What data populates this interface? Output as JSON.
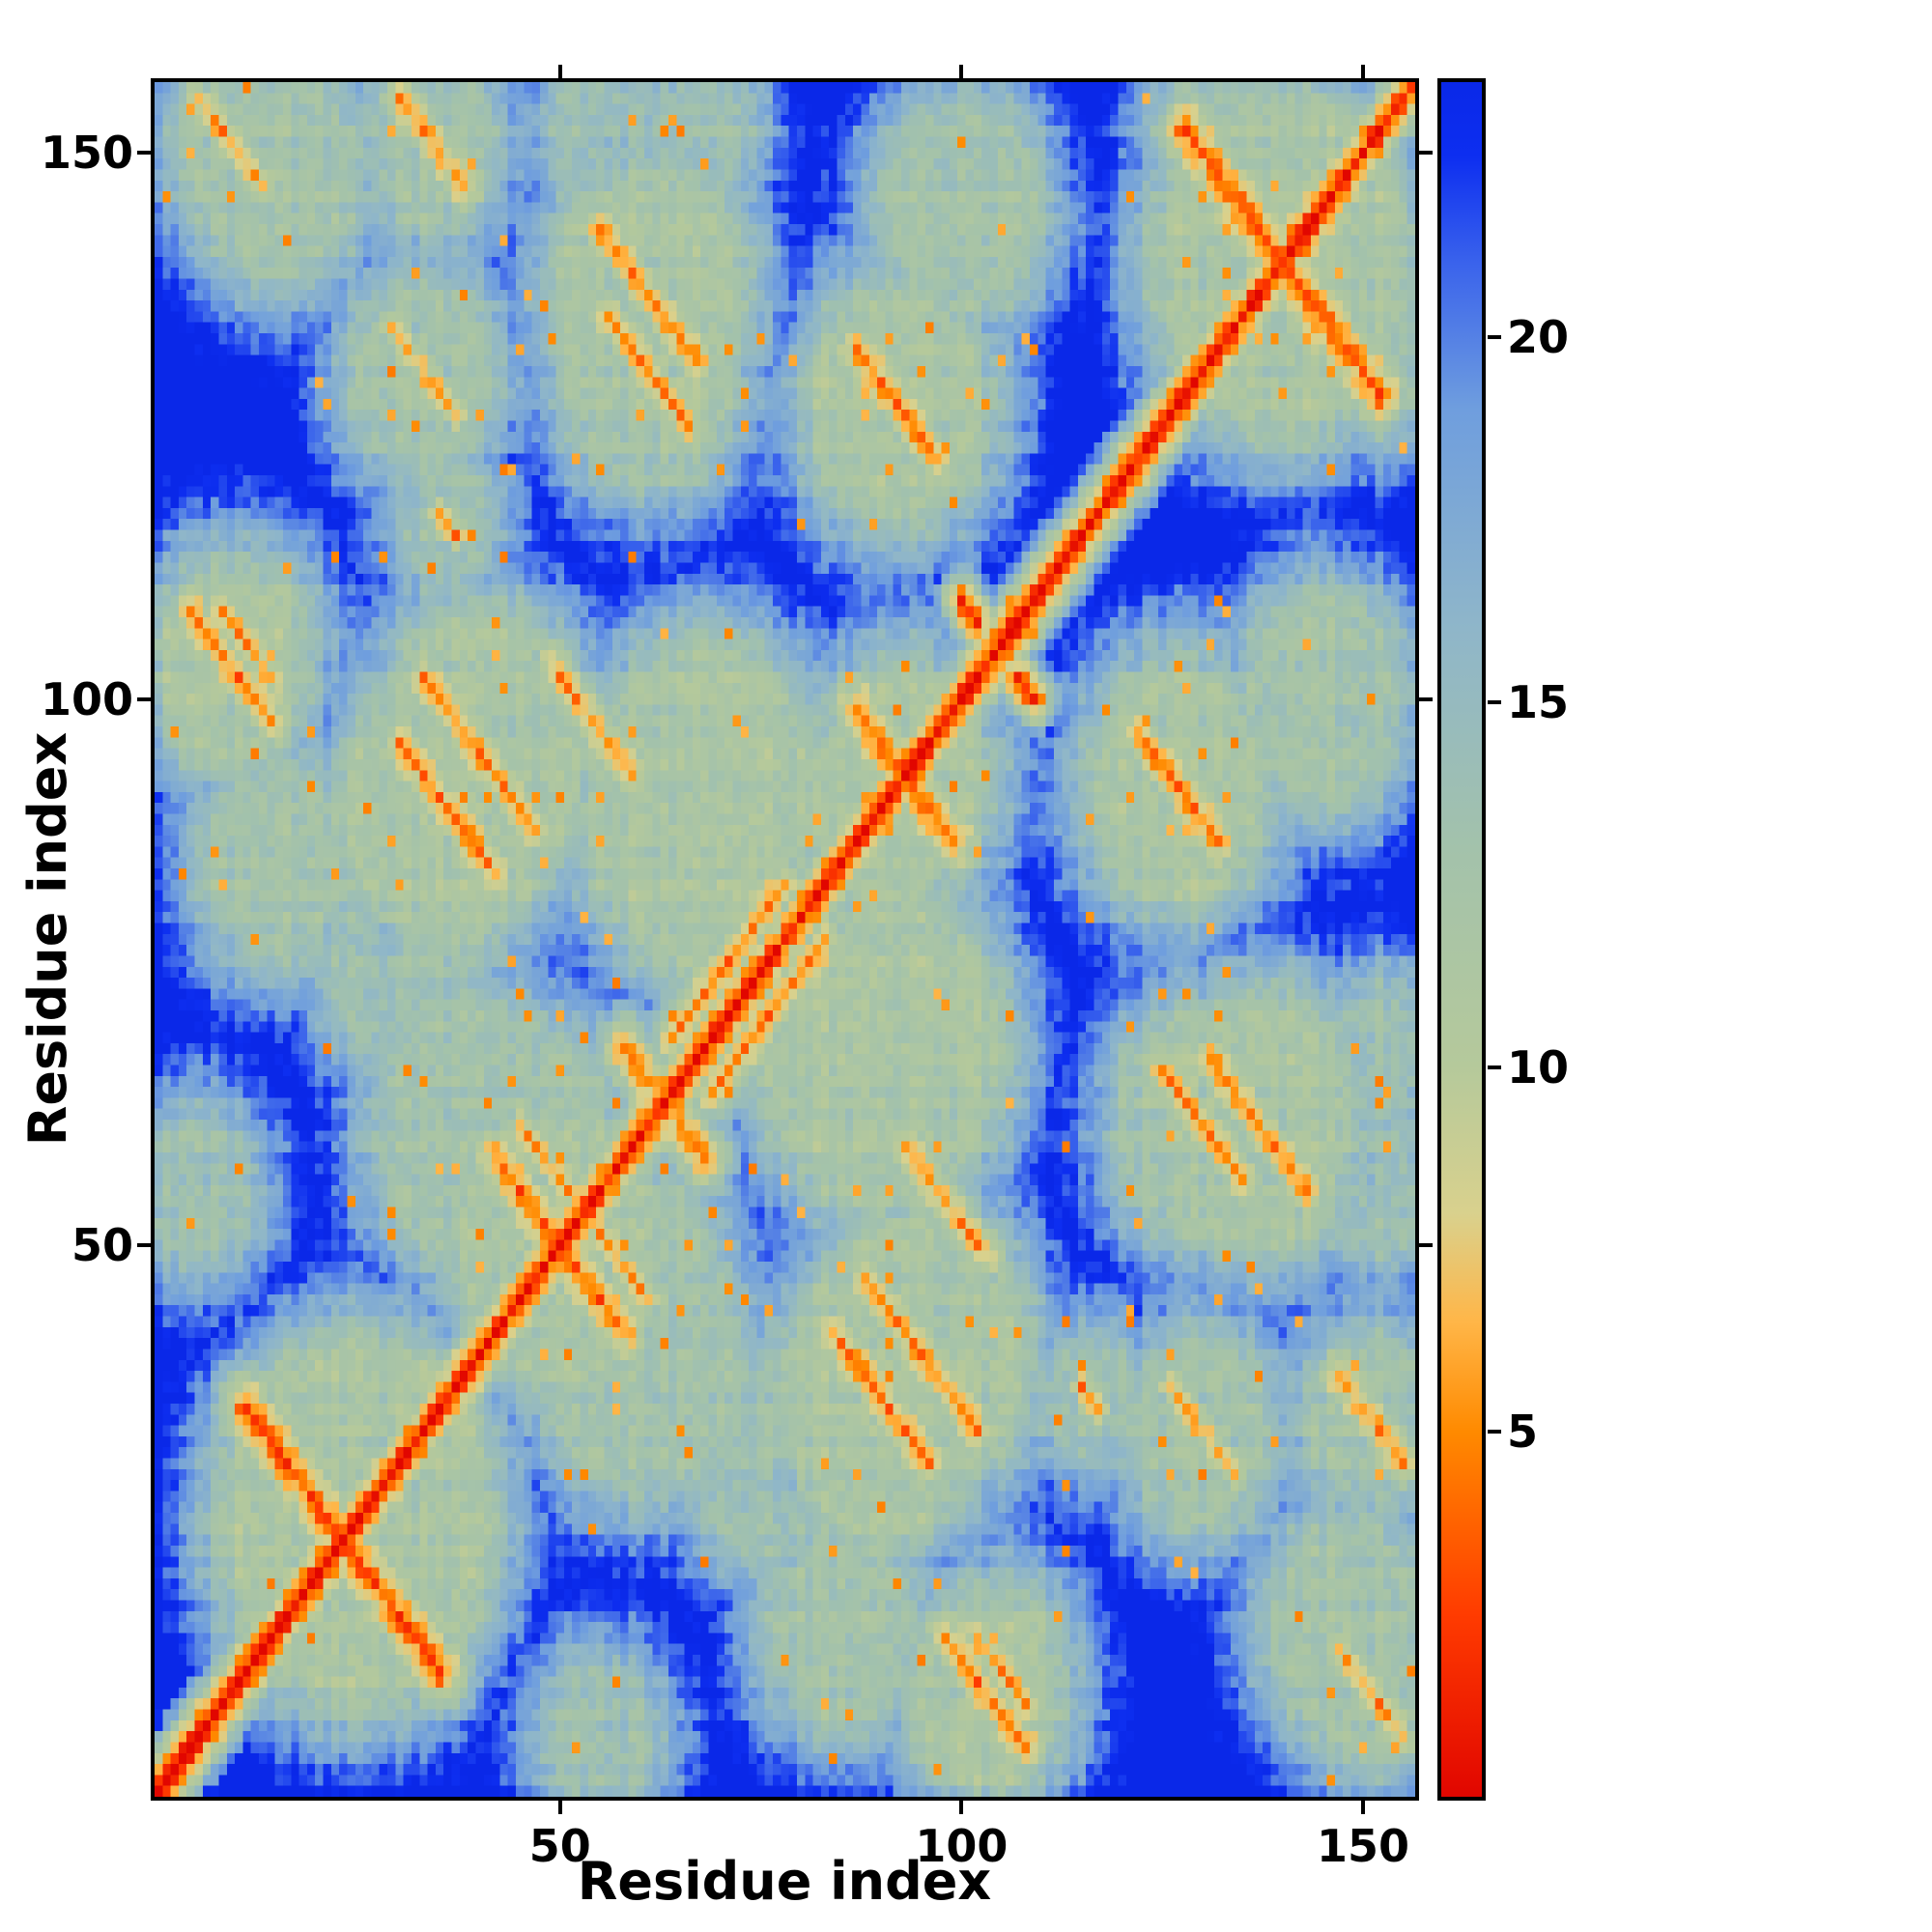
{
  "figure": {
    "background": "#ffffff",
    "frame_color": "#000000"
  },
  "axes": {
    "x_label": "Residue index",
    "y_label": "Residue index",
    "x_ticks": [
      50,
      100,
      150
    ],
    "y_ticks": [
      50,
      100,
      150
    ],
    "range": [
      0,
      157
    ]
  },
  "colorbar": {
    "ticks": [
      5,
      10,
      15,
      20
    ],
    "vmin": 0,
    "vmax": 23.5
  },
  "chart_data": {
    "type": "heatmap",
    "title": "",
    "xlabel": "Residue index",
    "ylabel": "Residue index",
    "n": 157,
    "symmetric": true,
    "value_kind": "inter-residue distance map, red = near (0), blue = far (>22)",
    "diagonal_value": 0,
    "chain_slope": 3.4,
    "background_value": 23.5,
    "blob_spread": 1.2,
    "colormap_stops": [
      [
        0,
        "#e10600"
      ],
      [
        2.5,
        "#ff3b00"
      ],
      [
        5,
        "#ff8a00"
      ],
      [
        6.5,
        "#ffb648"
      ],
      [
        8,
        "#d9d18d"
      ],
      [
        10,
        "#b5c99b"
      ],
      [
        13,
        "#a3c2ab"
      ],
      [
        16,
        "#8fb6c9"
      ],
      [
        19,
        "#6f9ede"
      ],
      [
        21,
        "#3a63ec"
      ],
      [
        22.5,
        "#0d2ef0"
      ],
      [
        23.5,
        "#0a28e8"
      ]
    ],
    "contacts": [
      {
        "type": "anti",
        "x": 23,
        "y": 23,
        "len": 12,
        "core": 3,
        "spread": 3
      },
      {
        "type": "anti",
        "x": 50,
        "y": 50,
        "len": 8,
        "core": 4,
        "spread": 3
      },
      {
        "type": "anti",
        "x": 63,
        "y": 63,
        "len": 5,
        "core": 4.5,
        "spread": 3
      },
      {
        "type": "anti",
        "x": 93,
        "y": 93,
        "len": 6,
        "core": 4,
        "spread": 3
      },
      {
        "type": "anti",
        "x": 140,
        "y": 140,
        "len": 12,
        "core": 3,
        "spread": 3
      },
      {
        "type": "par",
        "x": 71,
        "y": 76,
        "len": 7,
        "core": 5,
        "spread": 3.5
      },
      {
        "type": "anti",
        "x": 40,
        "y": 95,
        "len": 7,
        "core": 5,
        "spread": 3.5
      },
      {
        "type": "anti",
        "x": 54,
        "y": 98,
        "len": 5,
        "core": 5.5,
        "spread": 3.5
      },
      {
        "type": "anti",
        "x": 61,
        "y": 137,
        "len": 6,
        "core": 4.5,
        "spread": 3.5
      },
      {
        "type": "anti",
        "x": 92,
        "y": 127,
        "len": 5,
        "core": 4.5,
        "spread": 3.5
      },
      {
        "type": "anti",
        "x": 9,
        "y": 103,
        "len": 5,
        "core": 5,
        "spread": 3.5
      },
      {
        "type": "anti",
        "x": 90,
        "y": 36,
        "len": 6,
        "core": 4.5,
        "spread": 3.5
      },
      {
        "type": "anti",
        "x": 130,
        "y": 61,
        "len": 5,
        "core": 5,
        "spread": 3.5
      },
      {
        "type": "anti",
        "x": 151,
        "y": 34,
        "len": 4,
        "core": 5,
        "spread": 3.5
      },
      {
        "type": "anti",
        "x": 116,
        "y": 36,
        "len": 1,
        "core": 5,
        "spread": 5
      },
      {
        "type": "anti",
        "x": 48,
        "y": 58,
        "len": 3,
        "core": 5.5,
        "spread": 4
      },
      {
        "type": "anti",
        "x": 101,
        "y": 108,
        "len": 1,
        "core": 2,
        "spread": 5
      },
      {
        "type": "anti",
        "x": 33,
        "y": 130,
        "len": 4,
        "core": 6,
        "spread": 4
      },
      {
        "type": "anti",
        "x": 151,
        "y": 9,
        "len": 4,
        "core": 6,
        "spread": 4
      },
      {
        "type": "anti",
        "x": 105,
        "y": 11,
        "len": 3,
        "core": 5.5,
        "spread": 4
      }
    ],
    "blobs": [
      {
        "x": 25,
        "y": 25,
        "r": 16,
        "core": 12
      },
      {
        "x": 50,
        "y": 50,
        "r": 12,
        "core": 12
      },
      {
        "x": 93,
        "y": 93,
        "r": 9,
        "core": 12
      },
      {
        "x": 140,
        "y": 140,
        "r": 15,
        "core": 12
      },
      {
        "x": 40,
        "y": 95,
        "r": 12,
        "core": 12
      },
      {
        "x": 60,
        "y": 40,
        "r": 12,
        "core": 13
      },
      {
        "x": 68,
        "y": 90,
        "r": 14,
        "core": 12
      },
      {
        "x": 88,
        "y": 70,
        "r": 12,
        "core": 13
      },
      {
        "x": 61,
        "y": 137,
        "r": 11,
        "core": 12
      },
      {
        "x": 92,
        "y": 127,
        "r": 10,
        "core": 12
      },
      {
        "x": 9,
        "y": 103,
        "r": 8,
        "core": 12
      },
      {
        "x": 90,
        "y": 36,
        "r": 12,
        "core": 12
      },
      {
        "x": 130,
        "y": 61,
        "r": 10,
        "core": 13
      },
      {
        "x": 151,
        "y": 34,
        "r": 7,
        "core": 13
      },
      {
        "x": 48,
        "y": 58,
        "r": 10,
        "core": 13
      },
      {
        "x": 145,
        "y": 100,
        "r": 9,
        "core": 13
      },
      {
        "x": 15,
        "y": 148,
        "r": 9,
        "core": 13
      },
      {
        "x": 33,
        "y": 130,
        "r": 8,
        "core": 13
      },
      {
        "x": 5,
        "y": 55,
        "r": 6,
        "core": 14
      },
      {
        "x": 152,
        "y": 55,
        "r": 6,
        "core": 14
      },
      {
        "x": 151,
        "y": 9,
        "r": 6,
        "core": 13
      },
      {
        "x": 116,
        "y": 36,
        "r": 5,
        "core": 14
      },
      {
        "x": 75,
        "y": 30,
        "r": 8,
        "core": 14
      },
      {
        "x": 105,
        "y": 11,
        "r": 7,
        "core": 13
      },
      {
        "x": 152,
        "y": 133,
        "r": 7,
        "core": 13
      },
      {
        "x": 65,
        "y": 153,
        "r": 8,
        "core": 14
      },
      {
        "x": 85,
        "y": 15,
        "r": 8,
        "core": 13
      }
    ],
    "noise": {
      "amp": 3,
      "stripe": 1.6,
      "speckle_threshold": 0.986,
      "speckle_low": 4.5
    }
  }
}
